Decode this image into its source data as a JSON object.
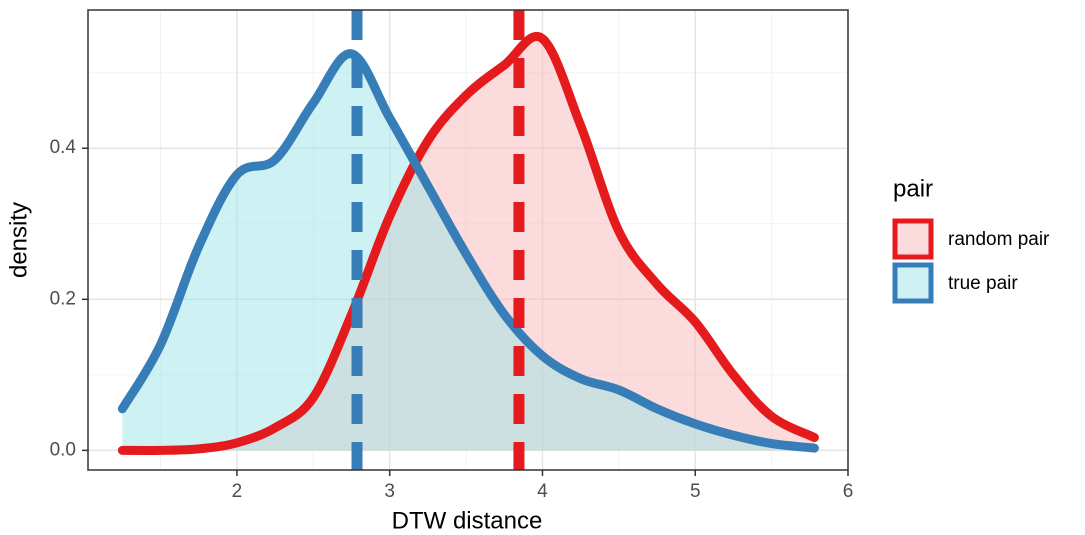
{
  "chart_data": {
    "type": "density",
    "x_label": "DTW distance",
    "y_label": "density",
    "x": [
      1.25,
      1.5,
      1.75,
      2,
      2.25,
      2.5,
      2.75,
      3,
      3.25,
      3.5,
      3.75,
      4,
      4.25,
      4.5,
      4.75,
      5,
      5.25,
      5.5,
      5.78
    ],
    "series": [
      {
        "name": "random pair",
        "color": "#e41a1c",
        "fill": "#f8b8b8",
        "mean": 3.846,
        "values": [
          0.0,
          0.0,
          0.002,
          0.01,
          0.03,
          0.07,
          0.18,
          0.31,
          0.41,
          0.47,
          0.51,
          0.545,
          0.43,
          0.29,
          0.22,
          0.17,
          0.1,
          0.045,
          0.017
        ]
      },
      {
        "name": "true pair",
        "color": "#377eb8",
        "fill": "#9ee6ea",
        "mean": 2.786,
        "values": [
          0.055,
          0.14,
          0.27,
          0.365,
          0.385,
          0.46,
          0.525,
          0.44,
          0.35,
          0.26,
          0.18,
          0.125,
          0.095,
          0.08,
          0.055,
          0.035,
          0.02,
          0.009,
          0.003
        ]
      }
    ],
    "fill_opacity": 0.5,
    "xlim": [
      1.025,
      6
    ],
    "ylim": [
      -0.026,
      0.583
    ],
    "xticks": [
      2,
      3,
      4,
      5,
      6
    ],
    "yticks": [
      {
        "value": 0,
        "label": "0.0"
      },
      0.2,
      0.4
    ],
    "minor_xticks": [
      1.5,
      2.5,
      3.5,
      4.5,
      5.5
    ],
    "minor_yticks": [
      0.1,
      0.3,
      0.5
    ],
    "grid": true,
    "legend_title": "pair",
    "legend": "right"
  }
}
